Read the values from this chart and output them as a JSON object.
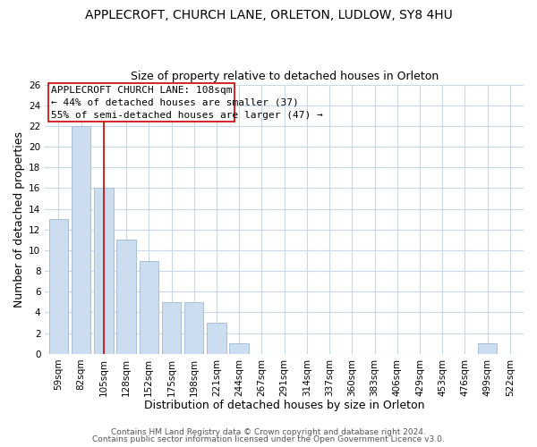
{
  "title": "APPLECROFT, CHURCH LANE, ORLETON, LUDLOW, SY8 4HU",
  "subtitle": "Size of property relative to detached houses in Orleton",
  "xlabel": "Distribution of detached houses by size in Orleton",
  "ylabel": "Number of detached properties",
  "bar_labels": [
    "59sqm",
    "82sqm",
    "105sqm",
    "128sqm",
    "152sqm",
    "175sqm",
    "198sqm",
    "221sqm",
    "244sqm",
    "267sqm",
    "291sqm",
    "314sqm",
    "337sqm",
    "360sqm",
    "383sqm",
    "406sqm",
    "429sqm",
    "453sqm",
    "476sqm",
    "499sqm",
    "522sqm"
  ],
  "bar_values": [
    13,
    22,
    16,
    11,
    9,
    5,
    5,
    3,
    1,
    0,
    0,
    0,
    0,
    0,
    0,
    0,
    0,
    0,
    0,
    1,
    0
  ],
  "bar_color": "#ccddf0",
  "bar_edge_color": "#a8c0d8",
  "highlight_bar_index": 2,
  "highlight_line_color": "#cc0000",
  "ylim": [
    0,
    26
  ],
  "yticks": [
    0,
    2,
    4,
    6,
    8,
    10,
    12,
    14,
    16,
    18,
    20,
    22,
    24,
    26
  ],
  "annotation_title": "APPLECROFT CHURCH LANE: 108sqm",
  "annotation_line1": "← 44% of detached houses are smaller (37)",
  "annotation_line2": "55% of semi-detached houses are larger (47) →",
  "annotation_box_color": "#ffffff",
  "annotation_box_edge": "#cc0000",
  "footer1": "Contains HM Land Registry data © Crown copyright and database right 2024.",
  "footer2": "Contains public sector information licensed under the Open Government Licence v3.0.",
  "background_color": "#ffffff",
  "grid_color": "#c8d8e8",
  "title_fontsize": 10,
  "subtitle_fontsize": 9,
  "tick_fontsize": 7.5,
  "axis_label_fontsize": 9,
  "footer_fontsize": 6.5,
  "ann_fontsize": 8
}
